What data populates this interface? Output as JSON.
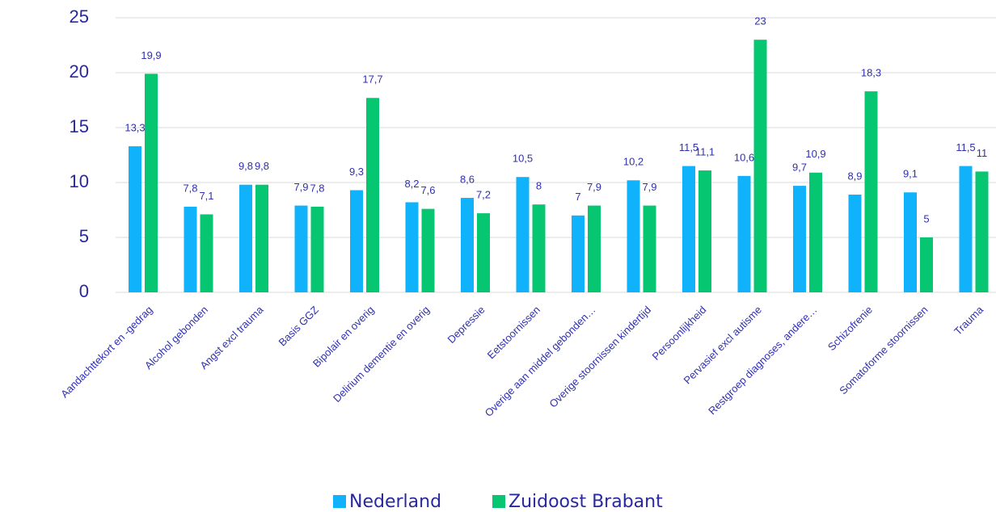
{
  "chart_data": {
    "type": "bar",
    "categories": [
      "Aandachttekort en -gedrag",
      "Alcohol gebonden",
      "Angst excl trauma",
      "Basis GGZ",
      "Bipolair en overig",
      "Delirium dementie en overig",
      "Depressie",
      "Eetstoornissen",
      "Overige aan middel gebonden…",
      "Overige stoornissen kindertijd",
      "Persoonlijkheid",
      "Pervasief excl autisme",
      "Restgroep diagnoses, andere…",
      "Schizofrenie",
      "Somatoforme stoornissen",
      "Trauma"
    ],
    "series": [
      {
        "name": "Nederland",
        "color": "#0fb2fb",
        "values": [
          13.3,
          7.8,
          9.8,
          7.9,
          9.3,
          8.2,
          8.6,
          10.5,
          7,
          10.2,
          11.5,
          10.6,
          9.7,
          8.9,
          9.1,
          11.5
        ],
        "value_labels": [
          "13,3",
          "7,8",
          "9,8",
          "7,9",
          "9,3",
          "8,2",
          "8,6",
          "10,5",
          "7",
          "10,2",
          "11,5",
          "10,6",
          "9,7",
          "8,9",
          "9,1",
          "11,5"
        ]
      },
      {
        "name": "Zuidoost Brabant",
        "color": "#06c672",
        "values": [
          19.9,
          7.1,
          9.8,
          7.8,
          17.7,
          7.6,
          7.2,
          8,
          7.9,
          7.9,
          11.1,
          23,
          10.9,
          18.3,
          5,
          11
        ],
        "value_labels": [
          "19,9",
          "7,1",
          "9,8",
          "7,8",
          "17,7",
          "7,6",
          "7,2",
          "8",
          "7,9",
          "7,9",
          "11,1",
          "23",
          "10,9",
          "18,3",
          "5",
          "11"
        ]
      }
    ],
    "ylim": [
      0,
      25
    ],
    "yticks": [
      0,
      5,
      10,
      15,
      20,
      25
    ],
    "grid": true,
    "legend": "bottom"
  }
}
